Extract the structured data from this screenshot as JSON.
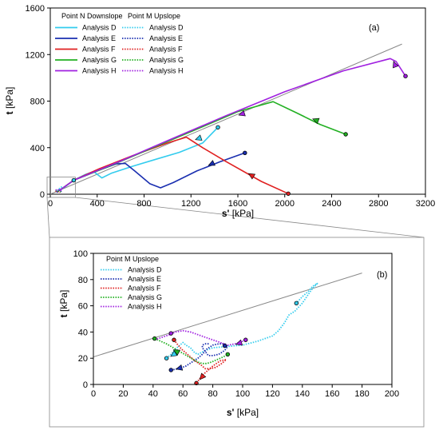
{
  "colors": {
    "D": "#33ccee",
    "E": "#1a2fb0",
    "F": "#e02020",
    "G": "#22b022",
    "H": "#a020e0",
    "line": "#888888"
  },
  "chart_data": [
    {
      "id": "a",
      "type": "line",
      "panel_label": "(a)",
      "xlabel": "s'",
      "xlabel_unit": "[kPa]",
      "ylabel": "t",
      "ylabel_unit": "[kPa]",
      "xlim": [
        0,
        3200
      ],
      "ylim": [
        0,
        1600
      ],
      "xticks": [
        0,
        400,
        800,
        1200,
        1600,
        2000,
        2400,
        2800,
        3200
      ],
      "yticks": [
        0,
        400,
        800,
        1200,
        1600
      ],
      "legend_headers": [
        "Point N Downslope",
        "Point M Upslope"
      ],
      "reference_line": [
        [
          0,
          0
        ],
        [
          3000,
          1290
        ]
      ],
      "series": [
        {
          "name": "Analysis D",
          "key": "D",
          "group": "N",
          "style": "solid",
          "points": [
            [
              55,
              20
            ],
            [
              120,
              60
            ],
            [
              200,
              120
            ],
            [
              300,
              170
            ],
            [
              370,
              195
            ],
            [
              440,
              140
            ],
            [
              520,
              180
            ],
            [
              700,
              240
            ],
            [
              900,
              300
            ],
            [
              1100,
              360
            ],
            [
              1300,
              440
            ],
            [
              1430,
              575
            ]
          ]
        },
        {
          "name": "Analysis E",
          "key": "E",
          "group": "N",
          "style": "solid",
          "points": [
            [
              60,
              20
            ],
            [
              200,
              120
            ],
            [
              400,
              200
            ],
            [
              560,
              260
            ],
            [
              640,
              265
            ],
            [
              720,
              200
            ],
            [
              850,
              90
            ],
            [
              940,
              55
            ],
            [
              1050,
              100
            ],
            [
              1250,
              200
            ],
            [
              1450,
              280
            ],
            [
              1660,
              355
            ]
          ]
        },
        {
          "name": "Analysis F",
          "key": "F",
          "group": "N",
          "style": "solid",
          "points": [
            [
              60,
              20
            ],
            [
              200,
              120
            ],
            [
              420,
              220
            ],
            [
              700,
              330
            ],
            [
              1000,
              440
            ],
            [
              1160,
              490
            ],
            [
              1300,
              400
            ],
            [
              1500,
              280
            ],
            [
              1800,
              110
            ],
            [
              2030,
              5
            ]
          ]
        },
        {
          "name": "Analysis G",
          "key": "G",
          "group": "N",
          "style": "solid",
          "points": [
            [
              60,
              20
            ],
            [
              200,
              120
            ],
            [
              500,
              240
            ],
            [
              900,
              410
            ],
            [
              1300,
              580
            ],
            [
              1600,
              710
            ],
            [
              1900,
              795
            ],
            [
              2100,
              700
            ],
            [
              2300,
              600
            ],
            [
              2520,
              515
            ]
          ]
        },
        {
          "name": "Analysis H",
          "key": "H",
          "group": "N",
          "style": "solid",
          "points": [
            [
              60,
              20
            ],
            [
              200,
              120
            ],
            [
              600,
              285
            ],
            [
              1000,
              460
            ],
            [
              1500,
              675
            ],
            [
              2000,
              880
            ],
            [
              2500,
              1060
            ],
            [
              2900,
              1165
            ],
            [
              2950,
              1140
            ],
            [
              3030,
              1015
            ]
          ]
        },
        {
          "name": "Analysis D",
          "key": "D",
          "group": "M",
          "style": "dotted",
          "points": [
            [
              60,
              30
            ],
            [
              70,
              40
            ],
            [
              85,
              55
            ],
            [
              100,
              65
            ],
            [
              110,
              60
            ]
          ]
        },
        {
          "name": "Analysis E",
          "key": "E",
          "group": "M",
          "style": "dotted",
          "points": [
            [
              55,
              15
            ],
            [
              65,
              25
            ],
            [
              75,
              35
            ],
            [
              85,
              30
            ],
            [
              95,
              20
            ]
          ]
        },
        {
          "name": "Analysis F",
          "key": "F",
          "group": "M",
          "style": "dotted",
          "points": [
            [
              45,
              30
            ],
            [
              60,
              20
            ],
            [
              75,
              25
            ],
            [
              85,
              15
            ]
          ]
        },
        {
          "name": "Analysis G",
          "key": "G",
          "group": "M",
          "style": "dotted",
          "points": [
            [
              45,
              35
            ],
            [
              60,
              30
            ],
            [
              75,
              25
            ],
            [
              90,
              20
            ]
          ]
        },
        {
          "name": "Analysis H",
          "key": "H",
          "group": "M",
          "style": "dotted",
          "points": [
            [
              45,
              35
            ],
            [
              65,
              40
            ],
            [
              85,
              35
            ],
            [
              100,
              30
            ]
          ]
        }
      ],
      "arrows": [
        {
          "key": "D",
          "at": [
            1270,
            480
          ],
          "to": [
            1200,
            455
          ]
        },
        {
          "key": "E",
          "at": [
            1380,
            262
          ],
          "to": [
            1300,
            225
          ]
        },
        {
          "key": "F",
          "at": [
            1720,
            160
          ],
          "to": [
            1640,
            210
          ]
        },
        {
          "key": "G",
          "at": [
            2270,
            635
          ],
          "to": [
            2190,
            665
          ]
        },
        {
          "key": "H",
          "at": [
            2940,
            1110
          ],
          "to": [
            2920,
            1165
          ]
        },
        {
          "key": "H",
          "at": [
            1640,
            690
          ],
          "to": [
            1580,
            670
          ]
        }
      ],
      "end_markers": [
        {
          "key": "D",
          "at": [
            1430,
            575
          ]
        },
        {
          "key": "E",
          "at": [
            1660,
            355
          ]
        },
        {
          "key": "F",
          "at": [
            2030,
            5
          ]
        },
        {
          "key": "G",
          "at": [
            2520,
            515
          ]
        },
        {
          "key": "H",
          "at": [
            3030,
            1015
          ]
        },
        {
          "key": "D",
          "at": [
            200,
            120
          ]
        }
      ],
      "zoom_box": [
        [
          0,
          0
        ],
        [
          200,
          120
        ]
      ]
    },
    {
      "id": "b",
      "type": "line",
      "panel_label": "(b)",
      "xlabel": "s'",
      "xlabel_unit": "[kPa]",
      "ylabel": "t",
      "ylabel_unit": "[kPa]",
      "xlim": [
        0,
        200
      ],
      "ylim": [
        0,
        100
      ],
      "xticks": [
        0,
        20,
        40,
        60,
        80,
        100,
        120,
        140,
        160,
        180,
        200
      ],
      "yticks": [
        0,
        20,
        40,
        60,
        80,
        100
      ],
      "legend_headers": [
        "Point M Upslope"
      ],
      "reference_line": [
        [
          0,
          21
        ],
        [
          180,
          85
        ]
      ],
      "series": [
        {
          "name": "Analysis D",
          "key": "D",
          "style": "dotted",
          "points": [
            [
              49,
              20
            ],
            [
              52,
              23
            ],
            [
              55,
              27
            ],
            [
              58,
              30
            ],
            [
              60,
              32
            ],
            [
              62,
              30
            ],
            [
              65,
              28
            ],
            [
              68,
              24
            ],
            [
              70,
              23
            ],
            [
              75,
              26
            ],
            [
              80,
              28
            ],
            [
              90,
              29
            ],
            [
              100,
              30
            ],
            [
              110,
              33
            ],
            [
              120,
              37
            ],
            [
              124,
              41
            ],
            [
              128,
              47
            ],
            [
              131,
              53
            ],
            [
              135,
              56
            ],
            [
              140,
              62
            ],
            [
              143,
              67
            ],
            [
              146,
              72
            ],
            [
              150,
              77
            ],
            [
              147,
              75
            ],
            [
              144,
              71
            ],
            [
              140,
              67
            ],
            [
              136,
              62
            ]
          ]
        },
        {
          "name": "Analysis E",
          "key": "E",
          "style": "dotted",
          "points": [
            [
              52,
              11
            ],
            [
              57,
              12
            ],
            [
              62,
              14
            ],
            [
              66,
              17
            ],
            [
              70,
              20
            ],
            [
              73,
              23
            ],
            [
              76,
              27
            ],
            [
              80,
              30
            ],
            [
              84,
              31
            ],
            [
              88,
              31
            ],
            [
              90,
              29
            ],
            [
              88,
              26
            ],
            [
              84,
              23
            ],
            [
              80,
              22
            ],
            [
              77,
              22
            ],
            [
              75,
              25
            ],
            [
              73,
              28
            ],
            [
              73,
              30
            ],
            [
              75,
              31
            ],
            [
              78,
              31
            ]
          ]
        },
        {
          "name": "Analysis F",
          "key": "F",
          "style": "dotted",
          "points": [
            [
              54,
              34
            ],
            [
              56,
              31
            ],
            [
              59,
              27
            ],
            [
              62,
              24
            ],
            [
              65,
              21
            ],
            [
              68,
              18
            ],
            [
              72,
              15
            ],
            [
              75,
              12
            ],
            [
              78,
              12
            ],
            [
              82,
              13
            ],
            [
              86,
              16
            ],
            [
              89,
              19
            ],
            [
              85,
              18
            ],
            [
              80,
              14
            ],
            [
              76,
              10
            ],
            [
              73,
              7
            ],
            [
              71,
              4
            ],
            [
              69,
              1
            ]
          ]
        },
        {
          "name": "Analysis G",
          "key": "G",
          "style": "dotted",
          "points": [
            [
              41,
              35
            ],
            [
              45,
              33
            ],
            [
              49,
              31
            ],
            [
              52,
              29
            ],
            [
              55,
              27
            ],
            [
              58,
              25
            ],
            [
              61,
              23
            ],
            [
              64,
              21
            ],
            [
              67,
              19
            ],
            [
              70,
              17
            ],
            [
              73,
              16
            ],
            [
              76,
              16
            ],
            [
              79,
              17
            ],
            [
              83,
              19
            ],
            [
              87,
              21
            ],
            [
              90,
              23
            ]
          ]
        },
        {
          "name": "Analysis H",
          "key": "H",
          "style": "dotted",
          "points": [
            [
              41,
              34
            ],
            [
              46,
              36
            ],
            [
              51,
              38
            ],
            [
              55,
              40
            ],
            [
              60,
              41
            ],
            [
              65,
              40
            ],
            [
              70,
              38
            ],
            [
              75,
              36
            ],
            [
              80,
              34
            ],
            [
              85,
              32
            ],
            [
              90,
              30
            ],
            [
              95,
              31
            ],
            [
              98,
              32
            ],
            [
              102,
              34
            ]
          ]
        }
      ],
      "arrows": [
        {
          "key": "D",
          "at": [
            54,
            23
          ],
          "to": [
            50,
            20
          ]
        },
        {
          "key": "E",
          "at": [
            58,
            12.5
          ],
          "to": [
            53,
            11
          ]
        },
        {
          "key": "F",
          "at": [
            73,
            6
          ],
          "to": [
            70,
            2
          ]
        },
        {
          "key": "G",
          "at": [
            56,
            25
          ],
          "to": [
            51,
            28
          ]
        },
        {
          "key": "H",
          "at": [
            98,
            31.5
          ],
          "to": [
            94,
            30
          ]
        }
      ],
      "end_markers": [
        {
          "key": "D",
          "at": [
            136,
            62
          ]
        },
        {
          "key": "D",
          "at": [
            49,
            20
          ]
        },
        {
          "key": "E",
          "at": [
            52,
            11
          ]
        },
        {
          "key": "E",
          "at": [
            88,
            29.5
          ]
        },
        {
          "key": "F",
          "at": [
            69,
            1
          ]
        },
        {
          "key": "F",
          "at": [
            54,
            34
          ]
        },
        {
          "key": "G",
          "at": [
            41,
            35
          ]
        },
        {
          "key": "G",
          "at": [
            90,
            23
          ]
        },
        {
          "key": "H",
          "at": [
            102,
            34
          ]
        },
        {
          "key": "H",
          "at": [
            52,
            39
          ]
        }
      ]
    }
  ]
}
